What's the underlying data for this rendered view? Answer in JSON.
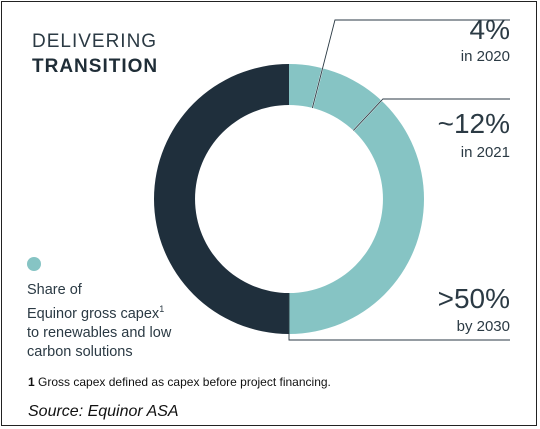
{
  "heading": {
    "line1": "DELIVERING",
    "line2": "TRANSITION"
  },
  "colors": {
    "dark": "#1f2f3c",
    "teal": "#86c4c4",
    "line": "#2b3a44"
  },
  "chart_data": {
    "type": "pie",
    "title": "DELIVERING TRANSITION",
    "unit": "%",
    "milestones": [
      {
        "value": 4,
        "value_label": "4%",
        "year_label": "in 2020"
      },
      {
        "value": 12,
        "value_label": "~12%",
        "year_label": "in 2021"
      },
      {
        "value": 50,
        "value_label": ">50%",
        "year_label": "by 2030"
      }
    ],
    "slices": [
      {
        "label": "Share of Equinor gross capex to renewables and low carbon solutions",
        "value": 50,
        "color": "#86c4c4"
      },
      {
        "label": "",
        "value": 50,
        "color": "#1f2f3c"
      }
    ]
  },
  "legend": {
    "line1": "Share of",
    "line2": "Equinor gross capex",
    "sup": "1",
    "line3": "to renewables and low",
    "line4": "carbon solutions"
  },
  "footnote": {
    "number": "1",
    "text": "Gross capex defined as capex before project financing."
  },
  "source": "Source: Equinor ASA"
}
